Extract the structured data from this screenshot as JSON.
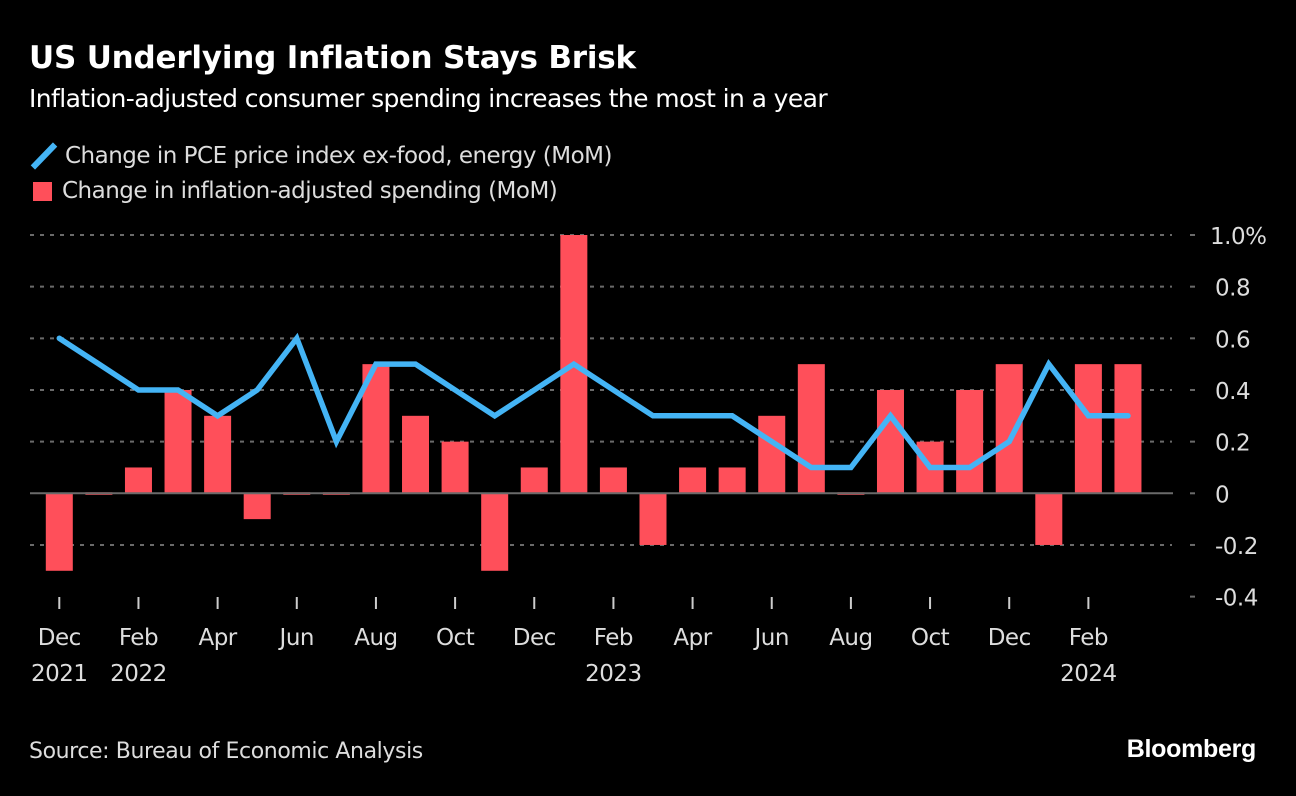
{
  "header": {
    "title": "US Underlying Inflation Stays Brisk",
    "subtitle": "Inflation-adjusted consumer spending increases the most in a year"
  },
  "legend": [
    {
      "label": "Change in PCE price index ex-food, energy (MoM)",
      "icon": "line-icon",
      "color": "#44b4f5"
    },
    {
      "label": "Change in inflation-adjusted spending (MoM)",
      "icon": "square-icon",
      "color": "#ff4f5a"
    }
  ],
  "footer": {
    "source": "Source: Bureau of Economic Analysis",
    "brand": "Bloomberg"
  },
  "chart_data": {
    "type": "bar",
    "title": "US Underlying Inflation Stays Brisk",
    "subtitle": "Inflation-adjusted consumer spending increases the most in a year",
    "xlabel": "",
    "ylabel": "",
    "ylim": [
      -0.4,
      1.0
    ],
    "y_ticks": [
      {
        "value": 1.0,
        "label": "1.0%"
      },
      {
        "value": 0.8,
        "label": "0.8"
      },
      {
        "value": 0.6,
        "label": "0.6"
      },
      {
        "value": 0.4,
        "label": "0.4"
      },
      {
        "value": 0.2,
        "label": "0.2"
      },
      {
        "value": 0,
        "label": "0"
      },
      {
        "value": -0.2,
        "label": "-0.2"
      },
      {
        "value": -0.4,
        "label": "-0.4"
      }
    ],
    "y_axis_position": "right",
    "grid": true,
    "legend_position": "top-left",
    "categories": [
      "Dec 2021",
      "Jan 2022",
      "Feb 2022",
      "Mar 2022",
      "Apr 2022",
      "May 2022",
      "Jun 2022",
      "Jul 2022",
      "Aug 2022",
      "Sep 2022",
      "Oct 2022",
      "Nov 2022",
      "Dec 2022",
      "Jan 2023",
      "Feb 2023",
      "Mar 2023",
      "Apr 2023",
      "May 2023",
      "Jun 2023",
      "Jul 2023",
      "Aug 2023",
      "Sep 2023",
      "Oct 2023",
      "Nov 2023",
      "Dec 2023",
      "Jan 2024",
      "Feb 2024",
      "Mar 2024"
    ],
    "x_ticks": [
      {
        "index": 0,
        "month": "Dec",
        "year": "2021"
      },
      {
        "index": 2,
        "month": "Feb",
        "year": "2022"
      },
      {
        "index": 4,
        "month": "Apr",
        "year": ""
      },
      {
        "index": 6,
        "month": "Jun",
        "year": ""
      },
      {
        "index": 8,
        "month": "Aug",
        "year": ""
      },
      {
        "index": 10,
        "month": "Oct",
        "year": ""
      },
      {
        "index": 12,
        "month": "Dec",
        "year": ""
      },
      {
        "index": 14,
        "month": "Feb",
        "year": "2023"
      },
      {
        "index": 16,
        "month": "Apr",
        "year": ""
      },
      {
        "index": 18,
        "month": "Jun",
        "year": ""
      },
      {
        "index": 20,
        "month": "Aug",
        "year": ""
      },
      {
        "index": 22,
        "month": "Oct",
        "year": ""
      },
      {
        "index": 24,
        "month": "Dec",
        "year": ""
      },
      {
        "index": 26,
        "month": "Feb",
        "year": "2024"
      }
    ],
    "series": [
      {
        "name": "Change in inflation-adjusted spending (MoM)",
        "type": "bar",
        "color": "#ff4f5a",
        "values": [
          -0.3,
          0,
          0.1,
          0.4,
          0.3,
          -0.1,
          0,
          0,
          0.5,
          0.3,
          0.2,
          -0.3,
          0.1,
          1.0,
          0.1,
          -0.2,
          0.1,
          0.1,
          0.3,
          0.5,
          0,
          0.4,
          0.2,
          0.4,
          0.5,
          -0.2,
          0.5,
          0.5
        ]
      },
      {
        "name": "Change in PCE price index ex-food, energy (MoM)",
        "type": "line",
        "color": "#44b4f5",
        "values": [
          0.6,
          0.5,
          0.4,
          0.4,
          0.3,
          0.4,
          0.6,
          0.2,
          0.5,
          0.5,
          0.4,
          0.3,
          0.4,
          0.5,
          0.4,
          0.3,
          0.3,
          0.3,
          0.2,
          0.1,
          0.1,
          0.3,
          0.1,
          0.1,
          0.2,
          0.5,
          0.3,
          0.3
        ]
      }
    ]
  }
}
